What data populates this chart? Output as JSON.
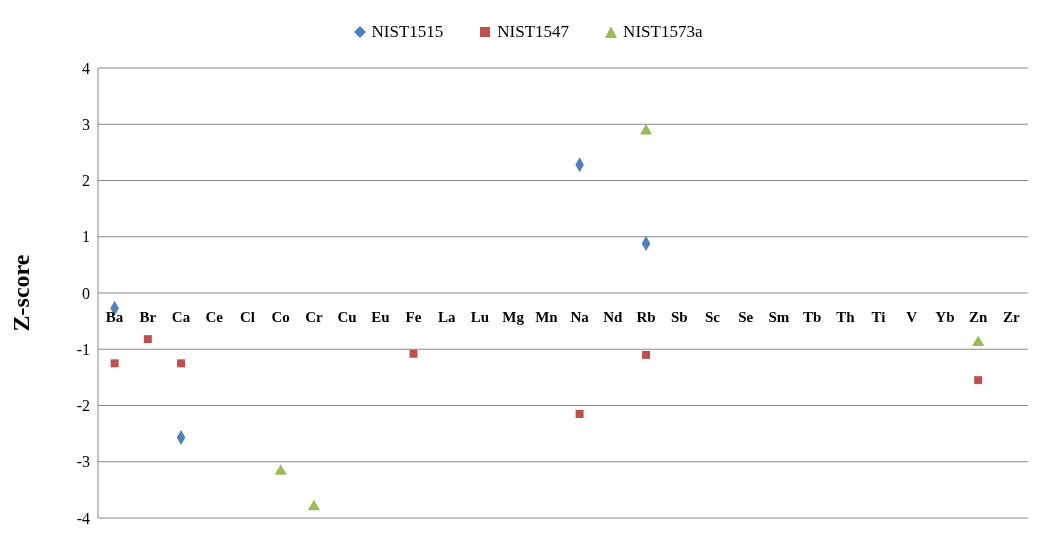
{
  "chart_data": {
    "type": "scatter",
    "ylabel": "Z-score",
    "categories": [
      "Ba",
      "Br",
      "Ca",
      "Ce",
      "Cl",
      "Co",
      "Cr",
      "Cu",
      "Eu",
      "Fe",
      "La",
      "Lu",
      "Mg",
      "Mn",
      "Na",
      "Nd",
      "Rb",
      "Sb",
      "Sc",
      "Se",
      "Sm",
      "Tb",
      "Th",
      "Ti",
      "V",
      "Yb",
      "Zn",
      "Zr"
    ],
    "series": [
      {
        "name": "NIST1515",
        "color": "#4f81bd",
        "marker": "diamond",
        "values": [
          -0.27,
          null,
          -2.57,
          null,
          null,
          null,
          null,
          null,
          null,
          null,
          null,
          null,
          null,
          null,
          2.28,
          null,
          0.88,
          null,
          null,
          null,
          null,
          null,
          null,
          null,
          null,
          null,
          null,
          null
        ]
      },
      {
        "name": "NIST1547",
        "color": "#c0504d",
        "marker": "square",
        "values": [
          -1.25,
          -0.82,
          -1.25,
          null,
          null,
          null,
          null,
          null,
          null,
          -1.08,
          null,
          null,
          null,
          null,
          -2.15,
          null,
          -1.1,
          null,
          null,
          null,
          null,
          null,
          null,
          null,
          null,
          null,
          -1.55,
          null
        ]
      },
      {
        "name": "NIST1573a",
        "color": "#9bbb59",
        "marker": "triangle",
        "values": [
          null,
          null,
          null,
          null,
          null,
          -3.17,
          -3.8,
          null,
          null,
          null,
          null,
          null,
          null,
          null,
          null,
          null,
          2.88,
          null,
          null,
          null,
          null,
          null,
          null,
          null,
          null,
          null,
          -0.88,
          null
        ]
      }
    ],
    "ylim": [
      -4,
      4
    ],
    "yticks": [
      -4,
      -3,
      -2,
      -1,
      0,
      1,
      2,
      3,
      4
    ],
    "grid": "y",
    "legend": "top"
  }
}
